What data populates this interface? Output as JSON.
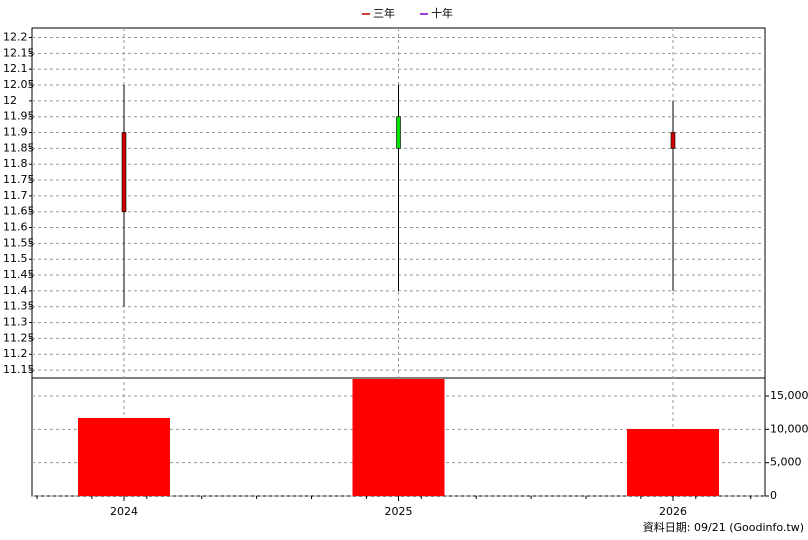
{
  "chart_data": {
    "type": "candlestick",
    "legend": [
      {
        "name": "三年",
        "color": "#c00000"
      },
      {
        "name": "十年",
        "color": "#8000c0"
      }
    ],
    "categories": [
      "2024",
      "2025",
      "2026"
    ],
    "open": [
      11.65,
      11.95,
      11.85
    ],
    "high": [
      12.05,
      12.05,
      12.0
    ],
    "low": [
      11.35,
      11.4,
      11.4
    ],
    "close": [
      11.9,
      11.85,
      11.9
    ],
    "up_color": "#cc0000",
    "down_color": "#00e000",
    "ylim": [
      11.125,
      12.23
    ],
    "yticks": [
      11.15,
      11.2,
      11.25,
      11.3,
      11.35,
      11.4,
      11.45,
      11.5,
      11.55,
      11.6,
      11.65,
      11.7,
      11.75,
      11.8,
      11.85,
      11.9,
      11.95,
      12,
      12.05,
      12.1,
      12.15,
      12.2
    ],
    "grid": true,
    "volume": {
      "values": [
        11700,
        17550,
        10050
      ],
      "color": "#ff0000",
      "ylim": [
        0,
        17700
      ],
      "yticks": [
        0,
        {
          "value": 5000,
          "label": "5,000"
        },
        {
          "value": 10000,
          "label": "10,000"
        },
        {
          "value": 15000,
          "label": "15,000"
        }
      ]
    },
    "footer": "資料日期: 09/21  (Goodinfo.tw)"
  }
}
